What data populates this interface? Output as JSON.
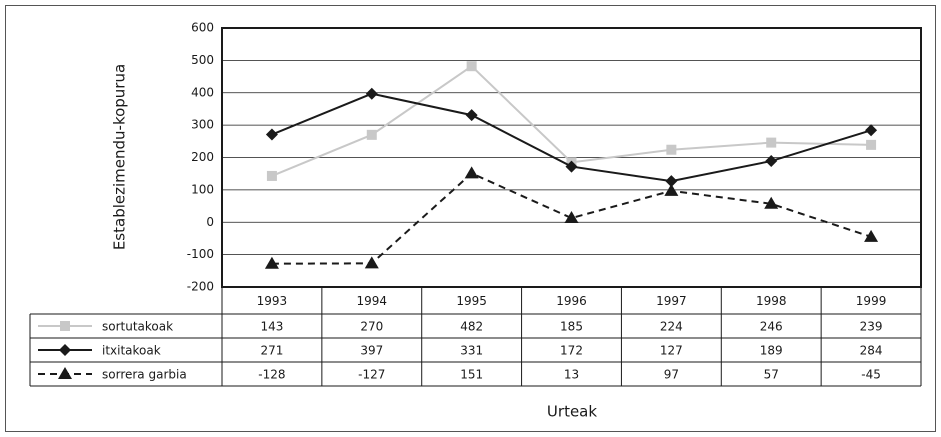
{
  "chart_data": {
    "type": "line",
    "y_label": "Establezimendu-kopurua",
    "x_label": "Urteak",
    "categories": [
      "1993",
      "1994",
      "1995",
      "1996",
      "1997",
      "1998",
      "1999"
    ],
    "series": [
      {
        "name": "sortutakoak",
        "color": "#c8c8c8",
        "marker": "square",
        "dash": false,
        "values": [
          143,
          270,
          482,
          185,
          224,
          246,
          239
        ]
      },
      {
        "name": "itxitakoak",
        "color": "#1a1a1a",
        "marker": "diamond",
        "dash": false,
        "values": [
          271,
          397,
          331,
          172,
          127,
          189,
          284
        ]
      },
      {
        "name": "sorrera garbia",
        "color": "#1a1a1a",
        "marker": "triangle",
        "dash": true,
        "values": [
          -128,
          -127,
          151,
          13,
          97,
          57,
          -45
        ]
      }
    ],
    "ylim": [
      -200,
      600
    ],
    "yticks": [
      -200,
      -100,
      0,
      100,
      200,
      300,
      400,
      500,
      600
    ],
    "grid": true
  }
}
